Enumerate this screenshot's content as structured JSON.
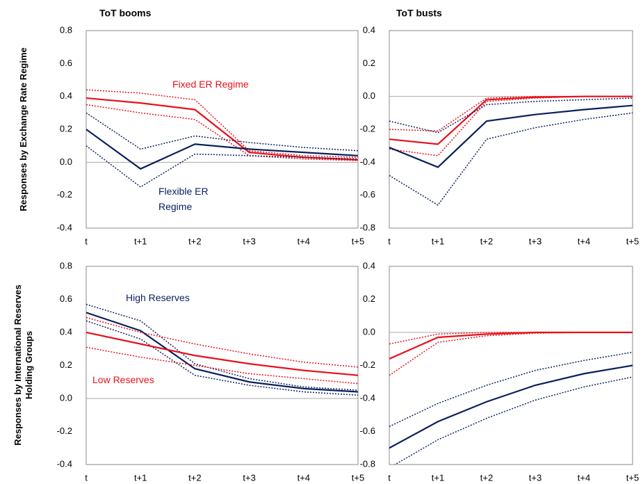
{
  "chart_data": [
    {
      "type": "line",
      "title": "ToT booms",
      "ylabel": "Responses by Exchange Rate Regime",
      "categories": [
        "t",
        "t+1",
        "t+2",
        "t+3",
        "t+4",
        "t+5"
      ],
      "ylim": [
        -0.4,
        0.8
      ],
      "yticks": [
        -0.4,
        -0.2,
        {
          "value": 0,
          "label": "0.0"
        },
        0.2,
        0.4,
        0.6,
        0.8
      ],
      "zero_line": true,
      "series": [
        {
          "name": "Fixed ER Regime",
          "color": "#e8101a",
          "style": "solid",
          "values": [
            0.39,
            0.36,
            0.32,
            0.06,
            0.03,
            0.015
          ]
        },
        {
          "color": "#e8101a",
          "style": "dotted",
          "values": [
            0.44,
            0.42,
            0.38,
            0.07,
            0.04,
            0.03
          ]
        },
        {
          "color": "#e8101a",
          "style": "dotted",
          "values": [
            0.35,
            0.3,
            0.26,
            0.04,
            0.02,
            0.01
          ]
        },
        {
          "name": "Flexible ER Regime",
          "color": "#0a1f5c",
          "style": "solid",
          "values": [
            0.2,
            -0.04,
            0.11,
            0.08,
            0.06,
            0.04
          ]
        },
        {
          "color": "#0a1f5c",
          "style": "dotted",
          "values": [
            0.3,
            0.08,
            0.16,
            0.12,
            0.09,
            0.07
          ]
        },
        {
          "color": "#0a1f5c",
          "style": "dotted",
          "values": [
            0.1,
            -0.15,
            0.05,
            0.04,
            0.03,
            0.02
          ]
        }
      ]
    },
    {
      "type": "line",
      "title": "ToT busts",
      "categories": [
        "t",
        "t+1",
        "t+2",
        "t+3",
        "t+4",
        "t+5"
      ],
      "ylim": [
        -0.8,
        0.4
      ],
      "yticks": [
        -0.8,
        -0.6,
        -0.4,
        -0.2,
        {
          "value": 0,
          "label": "0.0"
        },
        0.2,
        0.4
      ],
      "zero_line": true,
      "series": [
        {
          "color": "#e8101a",
          "style": "solid",
          "values": [
            -0.26,
            -0.29,
            -0.02,
            -0.005,
            0,
            0
          ]
        },
        {
          "color": "#e8101a",
          "style": "dotted",
          "values": [
            -0.2,
            -0.21,
            -0.01,
            0,
            0,
            0
          ]
        },
        {
          "color": "#e8101a",
          "style": "dotted",
          "values": [
            -0.32,
            -0.36,
            -0.03,
            -0.01,
            0,
            0
          ]
        },
        {
          "color": "#0a1f5c",
          "style": "solid",
          "values": [
            -0.31,
            -0.43,
            -0.15,
            -0.11,
            -0.08,
            -0.055
          ]
        },
        {
          "color": "#0a1f5c",
          "style": "dotted",
          "values": [
            -0.15,
            -0.22,
            -0.05,
            -0.03,
            -0.02,
            -0.01
          ]
        },
        {
          "color": "#0a1f5c",
          "style": "dotted",
          "values": [
            -0.48,
            -0.66,
            -0.26,
            -0.19,
            -0.14,
            -0.1
          ]
        }
      ]
    },
    {
      "type": "line",
      "ylabel": "Responses by International Reserves Holding Groups",
      "categories": [
        "t",
        "t+1",
        "t+2",
        "t+3",
        "t+4",
        "t+5"
      ],
      "ylim": [
        -0.4,
        0.8
      ],
      "yticks": [
        -0.4,
        -0.2,
        {
          "value": 0,
          "label": "0.0"
        },
        0.2,
        0.4,
        0.6,
        0.8
      ],
      "zero_line": true,
      "series": [
        {
          "name": "High Reserves",
          "color": "#0a1f5c",
          "style": "solid",
          "values": [
            0.52,
            0.41,
            0.18,
            0.1,
            0.06,
            0.04
          ]
        },
        {
          "color": "#0a1f5c",
          "style": "dotted",
          "values": [
            0.57,
            0.47,
            0.21,
            0.12,
            0.07,
            0.05
          ]
        },
        {
          "color": "#0a1f5c",
          "style": "dotted",
          "values": [
            0.47,
            0.36,
            0.14,
            0.08,
            0.04,
            0.02
          ]
        },
        {
          "name": "Low Reserves",
          "color": "#e8101a",
          "style": "solid",
          "values": [
            0.4,
            0.33,
            0.26,
            0.21,
            0.17,
            0.14
          ]
        },
        {
          "color": "#e8101a",
          "style": "dotted",
          "values": [
            0.49,
            0.4,
            0.33,
            0.27,
            0.22,
            0.19
          ]
        },
        {
          "color": "#e8101a",
          "style": "dotted",
          "values": [
            0.31,
            0.25,
            0.2,
            0.15,
            0.12,
            0.09
          ]
        }
      ]
    },
    {
      "type": "line",
      "categories": [
        "t",
        "t+1",
        "t+2",
        "t+3",
        "t+4",
        "t+5"
      ],
      "ylim": [
        -0.8,
        0.4
      ],
      "yticks": [
        -0.8,
        -0.6,
        -0.4,
        -0.2,
        {
          "value": 0,
          "label": "0.0"
        },
        0.2,
        0.4
      ],
      "zero_line": true,
      "series": [
        {
          "color": "#e8101a",
          "style": "solid",
          "values": [
            -0.16,
            -0.03,
            -0.01,
            0,
            0,
            0
          ]
        },
        {
          "color": "#e8101a",
          "style": "dotted",
          "values": [
            -0.07,
            -0.01,
            0,
            0,
            0,
            0
          ]
        },
        {
          "color": "#e8101a",
          "style": "dotted",
          "values": [
            -0.26,
            -0.06,
            -0.02,
            -0.005,
            0,
            0
          ]
        },
        {
          "color": "#0a1f5c",
          "style": "solid",
          "values": [
            -0.7,
            -0.54,
            -0.42,
            -0.32,
            -0.25,
            -0.2
          ]
        },
        {
          "color": "#0a1f5c",
          "style": "dotted",
          "values": [
            -0.57,
            -0.43,
            -0.32,
            -0.23,
            -0.17,
            -0.12
          ]
        },
        {
          "color": "#0a1f5c",
          "style": "dotted",
          "values": [
            -0.82,
            -0.65,
            -0.52,
            -0.41,
            -0.33,
            -0.27
          ]
        }
      ]
    }
  ]
}
